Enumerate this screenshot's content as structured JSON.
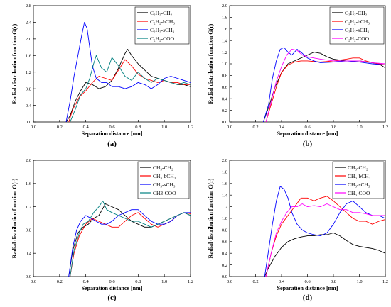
{
  "chart_data": [
    {
      "panel_label": "(a)",
      "type": "line",
      "xlabel": "Separation distance [nm]",
      "ylabel": "Radial distribution function G(r)",
      "xlim": [
        0.0,
        1.2
      ],
      "ylim": [
        0.0,
        2.8
      ],
      "xticks": [
        "0.0",
        "0.2",
        "0.4",
        "0.6",
        "0.8",
        "1.0",
        "1.2"
      ],
      "yticks": [
        "0.0",
        "0.4",
        "0.8",
        "1.2",
        "1.6",
        "2.0",
        "2.4",
        "2.8"
      ],
      "legend_position": "top-right",
      "series": [
        {
          "name": "C₂H₂-CH₂",
          "color": "#000000",
          "x": [
            0.25,
            0.28,
            0.32,
            0.36,
            0.4,
            0.45,
            0.5,
            0.55,
            0.6,
            0.65,
            0.7,
            0.72,
            0.75,
            0.8,
            0.85,
            0.9,
            0.95,
            1.0,
            1.05,
            1.1,
            1.15,
            1.2
          ],
          "y": [
            0.0,
            0.15,
            0.5,
            0.75,
            0.95,
            0.9,
            0.8,
            0.85,
            1.0,
            1.3,
            1.65,
            1.75,
            1.6,
            1.4,
            1.25,
            1.1,
            1.05,
            1.0,
            0.95,
            0.9,
            0.9,
            0.85
          ]
        },
        {
          "name": "C₂H₂-bCH₃",
          "color": "#ff0000",
          "x": [
            0.27,
            0.3,
            0.35,
            0.4,
            0.45,
            0.5,
            0.55,
            0.6,
            0.65,
            0.7,
            0.75,
            0.8,
            0.85,
            0.9,
            0.95,
            1.0,
            1.05,
            1.1,
            1.15,
            1.2
          ],
          "y": [
            0.0,
            0.3,
            0.6,
            0.75,
            0.95,
            1.1,
            1.05,
            1.0,
            1.25,
            1.5,
            1.35,
            1.15,
            1.05,
            1.0,
            0.95,
            1.0,
            0.95,
            0.95,
            0.9,
            0.9
          ]
        },
        {
          "name": "C₂H₂-sCH₃",
          "color": "#0000ff",
          "x": [
            0.25,
            0.28,
            0.31,
            0.34,
            0.37,
            0.39,
            0.41,
            0.43,
            0.45,
            0.48,
            0.52,
            0.56,
            0.6,
            0.65,
            0.7,
            0.75,
            0.8,
            0.85,
            0.9,
            0.95,
            1.0,
            1.05,
            1.1,
            1.15,
            1.2
          ],
          "y": [
            0.0,
            0.5,
            1.1,
            1.6,
            2.1,
            2.4,
            2.25,
            1.8,
            1.35,
            1.05,
            0.95,
            0.95,
            0.85,
            0.85,
            0.8,
            0.85,
            0.95,
            0.9,
            0.8,
            0.9,
            1.05,
            1.1,
            1.05,
            1.0,
            0.95
          ]
        },
        {
          "name": "C₂H₂-COO",
          "color": "#008080",
          "x": [
            0.28,
            0.32,
            0.36,
            0.4,
            0.43,
            0.46,
            0.48,
            0.52,
            0.56,
            0.6,
            0.65,
            0.7,
            0.75,
            0.8,
            0.85,
            0.9,
            0.95,
            1.0,
            1.05,
            1.1,
            1.15,
            1.2
          ],
          "y": [
            0.0,
            0.3,
            0.65,
            0.8,
            1.05,
            1.4,
            1.6,
            1.3,
            1.2,
            1.55,
            1.35,
            1.1,
            1.0,
            1.2,
            1.05,
            0.95,
            1.05,
            1.0,
            0.95,
            0.9,
            0.95,
            0.9
          ]
        }
      ]
    },
    {
      "panel_label": "(b)",
      "type": "line",
      "xlabel": "Separation distance [nm]",
      "ylabel": "Radial distribution function G(r)",
      "xlim": [
        0.0,
        1.2
      ],
      "ylim": [
        0.0,
        2.0
      ],
      "xticks": [
        "0.0",
        "0.2",
        "0.4",
        "0.6",
        "0.8",
        "1.0",
        "1.2"
      ],
      "yticks": [
        "0.0",
        "0.2",
        "0.4",
        "0.6",
        "0.8",
        "1.0",
        "1.2",
        "1.4",
        "1.6",
        "1.8",
        "2.0"
      ],
      "legend_position": "top-right",
      "series": [
        {
          "name": "C₂H₂-CH₂",
          "color": "#000000",
          "x": [
            0.26,
            0.3,
            0.35,
            0.4,
            0.45,
            0.5,
            0.55,
            0.6,
            0.65,
            0.7,
            0.75,
            0.8,
            0.9,
            1.0,
            1.1,
            1.15,
            1.2
          ],
          "y": [
            0.0,
            0.25,
            0.6,
            0.85,
            1.0,
            1.05,
            1.1,
            1.15,
            1.2,
            1.18,
            1.12,
            1.08,
            1.05,
            1.05,
            1.02,
            1.0,
            0.93
          ]
        },
        {
          "name": "C₂H₂-bCH₃",
          "color": "#ff0000",
          "x": [
            0.28,
            0.32,
            0.36,
            0.4,
            0.45,
            0.5,
            0.55,
            0.6,
            0.7,
            0.8,
            0.9,
            0.95,
            1.0,
            1.05,
            1.1,
            1.15,
            1.2
          ],
          "y": [
            0.0,
            0.3,
            0.6,
            0.85,
            0.98,
            1.03,
            1.05,
            1.05,
            1.03,
            1.05,
            1.08,
            1.1,
            1.1,
            1.05,
            1.02,
            1.0,
            0.98
          ]
        },
        {
          "name": "C₂H₂-sCH₃",
          "color": "#0000ff",
          "x": [
            0.26,
            0.3,
            0.33,
            0.36,
            0.39,
            0.42,
            0.45,
            0.48,
            0.52,
            0.55,
            0.6,
            0.65,
            0.7,
            0.8,
            0.9,
            1.0,
            1.1,
            1.2
          ],
          "y": [
            0.0,
            0.3,
            0.75,
            1.05,
            1.25,
            1.28,
            1.2,
            1.15,
            1.25,
            1.2,
            1.1,
            1.05,
            1.02,
            1.03,
            1.05,
            1.03,
            1.0,
            0.98
          ]
        },
        {
          "name": "C₂H₂-COO",
          "color": "#ff00ff",
          "x": [
            0.28,
            0.32,
            0.36,
            0.4,
            0.44,
            0.48,
            0.52,
            0.56,
            0.6,
            0.65,
            0.7,
            0.8,
            0.9,
            1.0,
            1.1,
            1.2
          ],
          "y": [
            0.0,
            0.35,
            0.7,
            0.95,
            1.15,
            1.25,
            1.23,
            1.15,
            1.12,
            1.1,
            1.08,
            1.05,
            1.05,
            1.05,
            1.02,
            1.0
          ]
        }
      ]
    },
    {
      "panel_label": "(c)",
      "type": "line",
      "xlabel": "Separation distance [nm]",
      "ylabel": "Radial distribution function G(r)",
      "xlim": [
        0.0,
        1.2
      ],
      "ylim": [
        0.0,
        2.0
      ],
      "xticks": [
        "0.0",
        "0.2",
        "0.4",
        "0.6",
        "0.8",
        "1.0",
        "1.2"
      ],
      "yticks": [
        "0.0",
        "0.4",
        "0.8",
        "1.2",
        "1.6",
        "2.0"
      ],
      "legend_position": "top-right",
      "series": [
        {
          "name": "CH₃-CH₂",
          "color": "#000000",
          "x": [
            0.27,
            0.3,
            0.34,
            0.38,
            0.42,
            0.46,
            0.5,
            0.55,
            0.6,
            0.65,
            0.7,
            0.75,
            0.8,
            0.85,
            0.9,
            0.95,
            1.0,
            1.05,
            1.1,
            1.15,
            1.2
          ],
          "y": [
            0.0,
            0.45,
            0.75,
            0.85,
            0.9,
            1.0,
            1.05,
            1.25,
            1.2,
            1.15,
            1.05,
            0.95,
            0.9,
            0.85,
            0.85,
            0.9,
            0.95,
            1.0,
            1.05,
            1.1,
            1.05
          ]
        },
        {
          "name": "CH₃-bCH₃",
          "color": "#ff0000",
          "x": [
            0.28,
            0.31,
            0.35,
            0.4,
            0.45,
            0.5,
            0.55,
            0.6,
            0.65,
            0.7,
            0.75,
            0.8,
            0.85,
            0.9,
            0.95,
            1.0,
            1.05,
            1.1,
            1.15,
            1.2
          ],
          "y": [
            0.0,
            0.4,
            0.7,
            0.9,
            1.0,
            0.95,
            0.9,
            0.85,
            0.85,
            0.95,
            1.05,
            1.1,
            1.0,
            0.9,
            0.85,
            0.9,
            0.95,
            1.05,
            1.1,
            1.08
          ]
        },
        {
          "name": "CH₃-sCH₃",
          "color": "#0000ff",
          "x": [
            0.27,
            0.3,
            0.33,
            0.36,
            0.4,
            0.44,
            0.48,
            0.52,
            0.56,
            0.6,
            0.65,
            0.7,
            0.75,
            0.8,
            0.85,
            0.9,
            0.95,
            1.0,
            1.05,
            1.1,
            1.15,
            1.2
          ],
          "y": [
            0.0,
            0.5,
            0.8,
            0.95,
            1.05,
            1.0,
            0.95,
            0.9,
            0.9,
            0.95,
            1.05,
            1.1,
            1.15,
            1.15,
            1.05,
            0.95,
            0.9,
            0.9,
            0.95,
            1.05,
            1.1,
            1.1
          ]
        },
        {
          "name": "CH3-COO",
          "color": "#008080",
          "x": [
            0.28,
            0.31,
            0.35,
            0.38,
            0.42,
            0.46,
            0.5,
            0.53,
            0.56,
            0.6,
            0.65,
            0.7,
            0.75,
            0.8,
            0.85,
            0.9,
            0.95,
            1.0,
            1.05,
            1.1,
            1.15,
            1.2
          ],
          "y": [
            0.0,
            0.45,
            0.75,
            0.9,
            0.95,
            1.1,
            1.2,
            1.3,
            1.15,
            1.1,
            1.05,
            1.0,
            0.95,
            0.95,
            0.9,
            0.85,
            0.9,
            0.95,
            1.0,
            1.05,
            1.1,
            1.05
          ]
        }
      ]
    },
    {
      "panel_label": "(d)",
      "type": "line",
      "xlabel": "Separation distance [nm]",
      "ylabel": "Radial distribution function G(r)",
      "xlim": [
        0.0,
        1.2
      ],
      "ylim": [
        0.0,
        2.0
      ],
      "xticks": [
        "0.0",
        "0.2",
        "0.4",
        "0.6",
        "0.8",
        "1.0",
        "1.2"
      ],
      "yticks": [
        "0.0",
        "0.2",
        "0.4",
        "0.6",
        "0.8",
        "1.0",
        "1.2",
        "1.4",
        "1.6",
        "1.8",
        "2.0"
      ],
      "legend_position": "top-right",
      "series": [
        {
          "name": "CH₃-CH₂",
          "color": "#000000",
          "x": [
            0.27,
            0.3,
            0.35,
            0.4,
            0.45,
            0.5,
            0.55,
            0.6,
            0.65,
            0.7,
            0.75,
            0.8,
            0.85,
            0.9,
            0.95,
            1.0,
            1.05,
            1.1,
            1.15,
            1.2
          ],
          "y": [
            0.0,
            0.15,
            0.35,
            0.5,
            0.6,
            0.65,
            0.68,
            0.7,
            0.7,
            0.72,
            0.72,
            0.75,
            0.7,
            0.62,
            0.55,
            0.52,
            0.5,
            0.48,
            0.45,
            0.4
          ]
        },
        {
          "name": "CH₃-bCH₃",
          "color": "#ff0000",
          "x": [
            0.28,
            0.32,
            0.36,
            0.4,
            0.45,
            0.5,
            0.55,
            0.6,
            0.65,
            0.7,
            0.75,
            0.8,
            0.85,
            0.9,
            0.95,
            1.0,
            1.05,
            1.1,
            1.15,
            1.2
          ],
          "y": [
            0.0,
            0.4,
            0.7,
            0.9,
            1.05,
            1.2,
            1.35,
            1.35,
            1.3,
            1.35,
            1.38,
            1.3,
            1.2,
            1.1,
            1.0,
            0.95,
            0.95,
            0.9,
            0.95,
            0.98
          ]
        },
        {
          "name": "CH₃-sCH₃",
          "color": "#0000ff",
          "x": [
            0.27,
            0.3,
            0.33,
            0.36,
            0.39,
            0.42,
            0.45,
            0.48,
            0.52,
            0.56,
            0.6,
            0.65,
            0.7,
            0.75,
            0.8,
            0.85,
            0.9,
            0.95,
            1.0,
            1.05,
            1.1,
            1.15,
            1.2
          ],
          "y": [
            0.0,
            0.45,
            0.9,
            1.3,
            1.55,
            1.5,
            1.35,
            1.1,
            0.9,
            0.8,
            0.75,
            0.72,
            0.7,
            0.75,
            0.9,
            1.1,
            1.25,
            1.3,
            1.2,
            1.1,
            1.05,
            1.05,
            1.0
          ]
        },
        {
          "name": "CH₃-COO",
          "color": "#ff00ff",
          "x": [
            0.28,
            0.32,
            0.36,
            0.4,
            0.44,
            0.48,
            0.52,
            0.56,
            0.6,
            0.65,
            0.7,
            0.75,
            0.8,
            0.85,
            0.9,
            0.95,
            1.0,
            1.05,
            1.1,
            1.15,
            1.2
          ],
          "y": [
            0.0,
            0.4,
            0.75,
            0.95,
            1.1,
            1.2,
            1.2,
            1.25,
            1.2,
            1.22,
            1.2,
            1.25,
            1.2,
            1.15,
            1.15,
            1.1,
            1.1,
            1.08,
            1.05,
            1.05,
            1.05
          ]
        }
      ]
    }
  ]
}
